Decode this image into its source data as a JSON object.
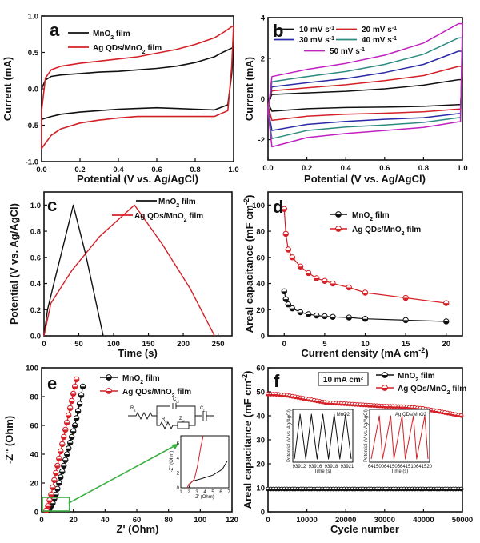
{
  "panels": [
    {
      "id": "a",
      "label": "a",
      "chart_data": {
        "type": "line",
        "xlabel": "Potential (V vs. Ag/AgCl)",
        "ylabel": "Current (mA)",
        "xlim": [
          0.0,
          1.0
        ],
        "ylim": [
          -1.0,
          1.0
        ],
        "xticks": [
          "0.0",
          "0.2",
          "0.4",
          "0.6",
          "0.8",
          "1.0"
        ],
        "yticks": [
          "-1.0",
          "-0.5",
          "0.0",
          "0.5",
          "1.0"
        ],
        "legend_position": "top-left",
        "colors": [
          "#111111",
          "#d42027"
        ],
        "series": [
          {
            "name": "MnO2 film",
            "upper": {
              "x": [
                0,
                0.02,
                0.05,
                0.1,
                0.2,
                0.3,
                0.4,
                0.5,
                0.6,
                0.7,
                0.8,
                0.9,
                0.95,
                1.0
              ],
              "y": [
                0.0,
                0.12,
                0.17,
                0.19,
                0.21,
                0.23,
                0.24,
                0.26,
                0.28,
                0.31,
                0.36,
                0.44,
                0.51,
                0.57
              ]
            },
            "lower": {
              "x": [
                1.0,
                0.99,
                0.97,
                0.9,
                0.8,
                0.7,
                0.6,
                0.5,
                0.4,
                0.3,
                0.2,
                0.1,
                0.05,
                0.0
              ],
              "y": [
                0.57,
                0.2,
                -0.22,
                -0.29,
                -0.28,
                -0.27,
                -0.26,
                -0.27,
                -0.28,
                -0.3,
                -0.32,
                -0.35,
                -0.38,
                -0.42
              ]
            }
          },
          {
            "name": "Ag QDs/MnO2 film",
            "upper": {
              "x": [
                0,
                0.02,
                0.05,
                0.1,
                0.2,
                0.3,
                0.4,
                0.5,
                0.6,
                0.7,
                0.8,
                0.9,
                0.95,
                1.0
              ],
              "y": [
                -0.3,
                0.15,
                0.26,
                0.31,
                0.35,
                0.38,
                0.41,
                0.44,
                0.49,
                0.54,
                0.61,
                0.7,
                0.78,
                0.87
              ]
            },
            "lower": {
              "x": [
                1.0,
                0.99,
                0.97,
                0.9,
                0.8,
                0.7,
                0.6,
                0.5,
                0.4,
                0.3,
                0.2,
                0.1,
                0.05,
                0.0
              ],
              "y": [
                0.87,
                0.3,
                -0.3,
                -0.38,
                -0.38,
                -0.38,
                -0.38,
                -0.38,
                -0.4,
                -0.43,
                -0.47,
                -0.55,
                -0.64,
                -0.82
              ]
            }
          }
        ]
      }
    },
    {
      "id": "b",
      "label": "b",
      "chart_data": {
        "type": "line",
        "xlabel": "Potential (V vs. Ag/AgCl)",
        "ylabel": "Current (mA)",
        "xlim": [
          0.0,
          1.0
        ],
        "ylim": [
          -3,
          4
        ],
        "xticks": [
          "0.0",
          "0.2",
          "0.4",
          "0.6",
          "0.8",
          "1.0"
        ],
        "yticks": [
          "-2",
          "0",
          "2",
          "4"
        ],
        "legend_position": "top",
        "colors": [
          "#111111",
          "#d42027",
          "#2a2aa6",
          "#2e8b82",
          "#c020c0"
        ],
        "series": [
          {
            "name": "10 mV s-1",
            "top": [
              0.22,
              0.3,
              0.38,
              0.5,
              0.68,
              0.95
            ],
            "bottom": [
              -0.6,
              -0.48,
              -0.42,
              -0.4,
              -0.36,
              -0.28
            ]
          },
          {
            "name": "20 mV s-1",
            "top": [
              0.4,
              0.55,
              0.7,
              0.9,
              1.15,
              1.6
            ],
            "bottom": [
              -1.05,
              -0.85,
              -0.75,
              -0.7,
              -0.63,
              -0.5
            ]
          },
          {
            "name": "30 mV s-1",
            "top": [
              0.6,
              0.8,
              1.0,
              1.3,
              1.7,
              2.35
            ],
            "bottom": [
              -1.55,
              -1.25,
              -1.1,
              -1.0,
              -0.92,
              -0.72
            ]
          },
          {
            "name": "40 mV s-1",
            "top": [
              0.85,
              1.1,
              1.35,
              1.7,
              2.2,
              3.0
            ],
            "bottom": [
              -1.95,
              -1.55,
              -1.38,
              -1.28,
              -1.15,
              -0.92
            ]
          },
          {
            "name": "50 mV s-1",
            "top": [
              1.1,
              1.45,
              1.75,
              2.15,
              2.75,
              3.7
            ],
            "bottom": [
              -2.35,
              -1.9,
              -1.7,
              -1.55,
              -1.4,
              -1.12
            ]
          }
        ],
        "x_points": [
          0.02,
          0.2,
          0.4,
          0.6,
          0.8,
          0.98
        ]
      }
    },
    {
      "id": "c",
      "label": "c",
      "chart_data": {
        "type": "line",
        "xlabel": "Time (s)",
        "ylabel": "Potential (V vs. Ag/AgCl)",
        "xlim": [
          0,
          270
        ],
        "ylim": [
          0.0,
          1.1
        ],
        "xticks": [
          "0",
          "50",
          "100",
          "150",
          "200",
          "250"
        ],
        "yticks": [
          "0.0",
          "0.2",
          "0.4",
          "0.6",
          "0.8",
          "1.0"
        ],
        "legend_position": "top-right",
        "colors": [
          "#111111",
          "#d42027"
        ],
        "series": [
          {
            "name": "MnO2 film",
            "x": [
              0,
              5,
              15,
              30,
              42,
              60,
              85
            ],
            "y": [
              0.0,
              0.2,
              0.42,
              0.74,
              1.0,
              0.62,
              0.0
            ]
          },
          {
            "name": "Ag QDs/MnO2 film",
            "x": [
              0,
              10,
              40,
              80,
              130,
              170,
              210,
              245
            ],
            "y": [
              0.0,
              0.25,
              0.5,
              0.76,
              1.0,
              0.7,
              0.36,
              0.0
            ]
          }
        ]
      }
    },
    {
      "id": "d",
      "label": "d",
      "chart_data": {
        "type": "scatter",
        "xlabel": "Current density (mA cm⁻²)",
        "ylabel": "Areal capacitance (mF cm⁻²)",
        "xlim": [
          -2,
          22
        ],
        "ylim": [
          0,
          110
        ],
        "xticks": [
          "0",
          "5",
          "10",
          "15",
          "20"
        ],
        "yticks": [
          "0",
          "20",
          "40",
          "60",
          "80",
          "100"
        ],
        "legend_position": "top-right",
        "colors": [
          "#111111",
          "#d42027"
        ],
        "series": [
          {
            "name": "MnO2 film",
            "x": [
              0,
              0.2,
              0.5,
              1,
              2,
              3,
              4,
              5,
              6,
              8,
              10,
              15,
              20
            ],
            "y": [
              34,
              28,
              24,
              21,
              18,
              16.5,
              15.5,
              15,
              14.5,
              14,
              13,
              12,
              11
            ]
          },
          {
            "name": "Ag QDs/MnO2 film",
            "x": [
              0,
              0.2,
              0.5,
              1,
              2,
              3,
              4,
              5,
              6,
              8,
              10,
              15,
              20
            ],
            "y": [
              97,
              78,
              66,
              60,
              53,
              48,
              44,
              42,
              40,
              37,
              33,
              29,
              25
            ]
          }
        ]
      }
    },
    {
      "id": "e",
      "label": "e",
      "chart_data": {
        "type": "scatter",
        "xlabel": "Z' (Ohm)",
        "ylabel": "-Z'' (Ohm)",
        "xlim": [
          0,
          120
        ],
        "ylim": [
          0,
          100
        ],
        "xticks": [
          "0",
          "20",
          "40",
          "60",
          "80",
          "100",
          "120"
        ],
        "yticks": [
          "0",
          "20",
          "40",
          "60",
          "80",
          "100"
        ],
        "legend_position": "top-right",
        "colors": [
          "#111111",
          "#d42027"
        ],
        "series": [
          {
            "name": "MnO2 film",
            "x": [
              4,
              5,
              6,
              7,
              8,
              9,
              10,
              11,
              12,
              13,
              14,
              15,
              16,
              17,
              18,
              19,
              20,
              21,
              22,
              23,
              24,
              25,
              26
            ],
            "y": [
              1,
              2,
              4,
              6,
              9,
              12,
              16,
              20,
              24,
              28,
              32,
              36,
              40,
              44,
              48,
              52,
              56,
              60,
              65,
              70,
              75,
              81,
              87
            ]
          },
          {
            "name": "Ag QDs/MnO2 film",
            "x": [
              3,
              4,
              5,
              6,
              7,
              8,
              9,
              10,
              11,
              12,
              13,
              14,
              15,
              16,
              17,
              18,
              19,
              20,
              21,
              22
            ],
            "y": [
              1,
              4,
              8,
              12,
              17,
              22,
              27,
              32,
              37,
              42,
              47,
              52,
              57,
              62,
              67,
              72,
              77,
              82,
              87,
              92
            ]
          }
        ],
        "inset": {
          "xlabel": "Z' (Ohm)",
          "ylabel": "-Z'' (Ohm)",
          "xticks": [
            "1",
            "2",
            "3",
            "4",
            "5",
            "6",
            "7"
          ],
          "yticks": [
            "0",
            "2",
            "4",
            "6"
          ],
          "circuit_labels": [
            "Rs",
            "Cdl",
            "Rct",
            "Zw",
            "CL"
          ]
        }
      }
    },
    {
      "id": "f",
      "label": "f",
      "chart_data": {
        "type": "scatter",
        "xlabel": "Cycle number",
        "ylabel": "Areal capacitance (mF cm⁻²)",
        "annotation": "10 mA cm²",
        "xlim": [
          0,
          50000
        ],
        "ylim": [
          0,
          60
        ],
        "xticks": [
          "0",
          "10000",
          "20000",
          "30000",
          "40000",
          "50000"
        ],
        "yticks": [
          "0",
          "10",
          "20",
          "30",
          "40",
          "50",
          "60"
        ],
        "legend_position": "top-right",
        "colors": [
          "#111111",
          "#d42027"
        ],
        "series": [
          {
            "name": "MnO2 film",
            "y_level": 9.5
          },
          {
            "name": "Ag QDs/MnO2 film",
            "x": [
              0,
              2000,
              5000,
              10000,
              15000,
              20000,
              25000,
              30000,
              35000,
              40000,
              45000,
              50000
            ],
            "y": [
              49,
              49,
              48.5,
              47,
              45.5,
              45,
              44.5,
              44,
              43.8,
              43,
              41.5,
              40
            ]
          }
        ],
        "inset_left": {
          "title": "MnO2",
          "ylabel": "Potential (V vs. Ag/AgCl)",
          "xlabel": "Time (s)",
          "xticks": [
            "93912",
            "93916",
            "93918",
            "93921"
          ]
        },
        "inset_right": {
          "title": "Ag QDs/MnO2",
          "ylabel": "Potential (V vs. Ag/AgCl)",
          "xlabel": "Time (s)",
          "xticks": [
            "641500",
            "641505",
            "641510",
            "641520"
          ]
        }
      }
    }
  ]
}
